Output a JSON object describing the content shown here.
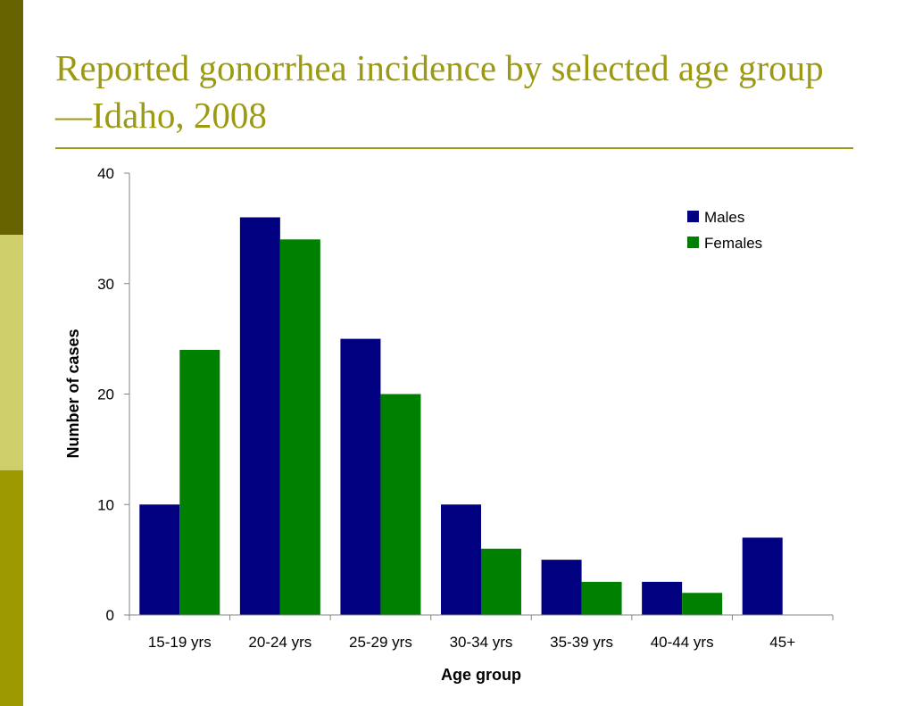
{
  "slide": {
    "title_line1": "Reported gonorrhea incidence by selected age group",
    "title_line2": "—Idaho, 2008"
  },
  "colors": {
    "title": "#9c9a12",
    "rule": "#9c9a12",
    "sidebar_top": "#676300",
    "sidebar_mid": "#cece6a",
    "sidebar_bottom": "#9c9a00",
    "males": "#000080",
    "females": "#008000",
    "axis": "#868686"
  },
  "chart_data": {
    "type": "bar",
    "categories": [
      "15-19 yrs",
      "20-24 yrs",
      "25-29 yrs",
      "30-34 yrs",
      "35-39 yrs",
      "40-44 yrs",
      "45+"
    ],
    "series": [
      {
        "name": "Males",
        "values": [
          10,
          36,
          25,
          10,
          5,
          3,
          7
        ]
      },
      {
        "name": "Females",
        "values": [
          24,
          34,
          20,
          6,
          3,
          2,
          0
        ]
      }
    ],
    "xlabel": "Age group",
    "ylabel": "Number of cases",
    "ylim": [
      0,
      40
    ],
    "yticks": [
      0,
      10,
      20,
      30,
      40
    ],
    "grid": false,
    "legend_position": "top-right"
  }
}
